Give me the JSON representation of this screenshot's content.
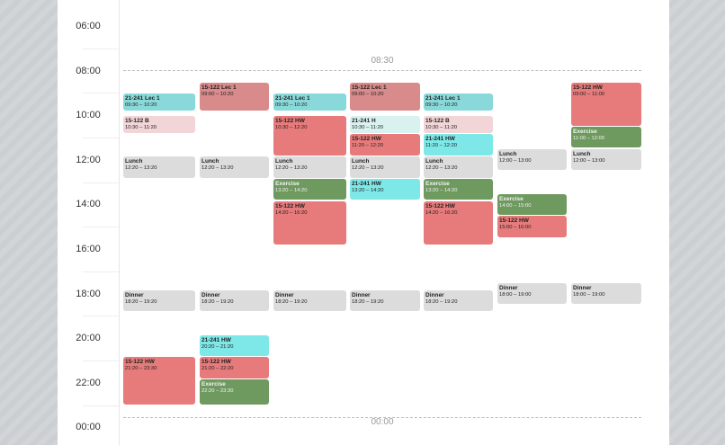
{
  "time_labels": [
    "06:00",
    "08:00",
    "10:00",
    "12:00",
    "14:00",
    "16:00",
    "18:00",
    "20:00",
    "22:00",
    "00:00"
  ],
  "markers": [
    "08:30",
    "00:00"
  ],
  "days": [
    {
      "events": [
        {
          "title": "21-241 Lec 1",
          "time": "09:30 – 10:20",
          "color": "#8ad9da"
        },
        {
          "title": "15-122 B",
          "time": "10:30 – 11:20",
          "color": "#f2d5d7"
        },
        {
          "title": "Lunch",
          "time": "12:20 – 13:20",
          "color": "#dcdcdc"
        },
        {
          "title": "Dinner",
          "time": "18:20 – 19:20",
          "color": "#dcdcdc"
        },
        {
          "title": "15-122 HW",
          "time": "21:20 – 23:30",
          "color": "#e77b7b"
        }
      ]
    },
    {
      "events": [
        {
          "title": "15-122 Lec 1",
          "time": "09:00 – 10:20",
          "color": "#d98a8a"
        },
        {
          "title": "Lunch",
          "time": "12:20 – 13:20",
          "color": "#dcdcdc"
        },
        {
          "title": "Dinner",
          "time": "18:20 – 19:20",
          "color": "#dcdcdc"
        },
        {
          "title": "21-241 HW",
          "time": "20:20 – 21:20",
          "color": "#7ee8e8"
        },
        {
          "title": "15-122 HW",
          "time": "21:20 – 22:20",
          "color": "#e77b7b"
        },
        {
          "title": "Exercise",
          "time": "22:20 – 23:30",
          "color": "#6f9a5f"
        }
      ]
    },
    {
      "events": [
        {
          "title": "21-241 Lec 1",
          "time": "09:30 – 10:20",
          "color": "#8ad9da"
        },
        {
          "title": "15-122 HW",
          "time": "10:30 – 12:20",
          "color": "#e77b7b"
        },
        {
          "title": "Lunch",
          "time": "12:20 – 13:20",
          "color": "#dcdcdc"
        },
        {
          "title": "Exercise",
          "time": "13:20 – 14:20",
          "color": "#6f9a5f"
        },
        {
          "title": "15-122 HW",
          "time": "14:20 – 16:20",
          "color": "#e77b7b"
        },
        {
          "title": "Dinner",
          "time": "18:20 – 19:20",
          "color": "#dcdcdc"
        }
      ]
    },
    {
      "events": [
        {
          "title": "15-122 Lec 1",
          "time": "09:00 – 10:20",
          "color": "#d98a8a"
        },
        {
          "title": "21-241 H",
          "time": "10:30 – 11:20",
          "color": "#d9f1ef"
        },
        {
          "title": "15-122 HW",
          "time": "11:20 – 12:20",
          "color": "#e77b7b"
        },
        {
          "title": "Lunch",
          "time": "12:20 – 13:20",
          "color": "#dcdcdc"
        },
        {
          "title": "21-241 HW",
          "time": "13:20 – 14:20",
          "color": "#7ee8e8"
        },
        {
          "title": "Dinner",
          "time": "18:20 – 19:20",
          "color": "#dcdcdc"
        }
      ]
    },
    {
      "events": [
        {
          "title": "21-241 Lec 1",
          "time": "09:30 – 10:20",
          "color": "#8ad9da"
        },
        {
          "title": "15-122 B",
          "time": "10:30 – 11:20",
          "color": "#f2d5d7"
        },
        {
          "title": "21-241 HW",
          "time": "11:20 – 12:20",
          "color": "#7ee8e8"
        },
        {
          "title": "Lunch",
          "time": "12:20 – 13:20",
          "color": "#dcdcdc"
        },
        {
          "title": "Exercise",
          "time": "13:20 – 14:20",
          "color": "#6f9a5f"
        },
        {
          "title": "15-122 HW",
          "time": "14:20 – 16:20",
          "color": "#e77b7b"
        },
        {
          "title": "Dinner",
          "time": "18:20 – 19:20",
          "color": "#dcdcdc"
        }
      ]
    },
    {
      "events": [
        {
          "title": "Lunch",
          "time": "12:00 – 13:00",
          "color": "#dcdcdc"
        },
        {
          "title": "Exercise",
          "time": "14:00 – 15:00",
          "color": "#6f9a5f"
        },
        {
          "title": "15-122 HW",
          "time": "15:00 – 16:00",
          "color": "#e77b7b"
        },
        {
          "title": "Dinner",
          "time": "18:00 – 19:00",
          "color": "#dcdcdc"
        }
      ]
    },
    {
      "events": [
        {
          "title": "15-122 HW",
          "time": "09:00 – 11:00",
          "color": "#e77b7b"
        },
        {
          "title": "Exercise",
          "time": "11:00 – 12:00",
          "color": "#6f9a5f"
        },
        {
          "title": "Lunch",
          "time": "12:00 – 13:00",
          "color": "#dcdcdc"
        },
        {
          "title": "Dinner",
          "time": "18:00 – 19:00",
          "color": "#dcdcdc"
        }
      ]
    }
  ]
}
